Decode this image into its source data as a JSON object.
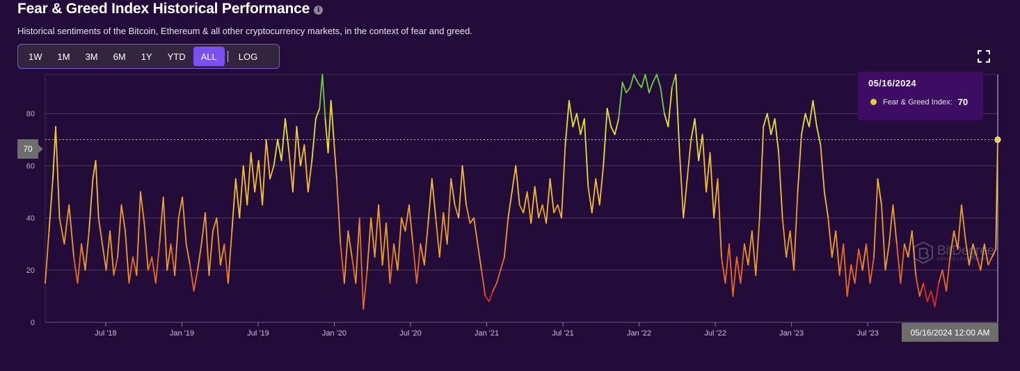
{
  "header": {
    "title": "Fear & Greed Index Historical Performance",
    "info_icon": "info-icon",
    "subtitle": "Historical sentiments of the Bitcoin, Ethereum & all other cryptocurrency markets, in the context of fear and greed."
  },
  "range_selector": {
    "buttons": [
      "1W",
      "1M",
      "3M",
      "6M",
      "1Y",
      "YTD",
      "ALL"
    ],
    "active": "ALL",
    "log_label": "LOG"
  },
  "fullscreen_icon": "fullscreen-icon",
  "tooltip": {
    "date": "05/16/2024",
    "series_label": "Fear & Greed Index:",
    "value": "70"
  },
  "crosshair": {
    "x_label": "05/16/2024 12:00 AM",
    "y_label": "70"
  },
  "watermark": {
    "name": "BitDegree",
    "tagline": "CRYPTO LEARNING HUB"
  },
  "colors": {
    "background": "#230c3a",
    "accent": "#7b4ff0",
    "gridline": "#4a3a60",
    "fear": "#e02a1f",
    "neutral": "#f0a020",
    "greed": "#e7e32e",
    "extreme_greed": "#6fd13a"
  },
  "chart_data": {
    "type": "line",
    "title": "Fear & Greed Index Historical Performance",
    "xlabel": "",
    "ylabel": "",
    "ylim": [
      0,
      95
    ],
    "yticks": [
      0,
      20,
      40,
      60,
      80
    ],
    "x_tick_labels": [
      "Jul '18",
      "Jan '19",
      "Jul '19",
      "Jan '20",
      "Jul '20",
      "Jan '21",
      "Jul '21",
      "Jan '22",
      "Jul '22",
      "Jan '23",
      "Jul '23"
    ],
    "x_tick_positions": [
      0.0635,
      0.1435,
      0.2235,
      0.3035,
      0.3835,
      0.4635,
      0.5435,
      0.6235,
      0.7035,
      0.7835,
      0.8635
    ],
    "grid": true,
    "legend": "none",
    "series": [
      {
        "name": "Fear & Greed Index",
        "points": [
          [
            0.0,
            15
          ],
          [
            0.004,
            35
          ],
          [
            0.008,
            55
          ],
          [
            0.011,
            75
          ],
          [
            0.015,
            40
          ],
          [
            0.02,
            30
          ],
          [
            0.025,
            45
          ],
          [
            0.03,
            25
          ],
          [
            0.034,
            15
          ],
          [
            0.038,
            30
          ],
          [
            0.042,
            20
          ],
          [
            0.046,
            35
          ],
          [
            0.05,
            55
          ],
          [
            0.053,
            62
          ],
          [
            0.056,
            40
          ],
          [
            0.06,
            30
          ],
          [
            0.064,
            20
          ],
          [
            0.068,
            35
          ],
          [
            0.072,
            18
          ],
          [
            0.076,
            25
          ],
          [
            0.08,
            45
          ],
          [
            0.084,
            35
          ],
          [
            0.088,
            15
          ],
          [
            0.092,
            25
          ],
          [
            0.096,
            18
          ],
          [
            0.1,
            50
          ],
          [
            0.104,
            38
          ],
          [
            0.108,
            20
          ],
          [
            0.112,
            25
          ],
          [
            0.116,
            15
          ],
          [
            0.12,
            30
          ],
          [
            0.124,
            48
          ],
          [
            0.128,
            20
          ],
          [
            0.132,
            30
          ],
          [
            0.136,
            18
          ],
          [
            0.14,
            40
          ],
          [
            0.144,
            48
          ],
          [
            0.148,
            30
          ],
          [
            0.152,
            22
          ],
          [
            0.156,
            12
          ],
          [
            0.16,
            20
          ],
          [
            0.164,
            30
          ],
          [
            0.168,
            42
          ],
          [
            0.172,
            18
          ],
          [
            0.176,
            35
          ],
          [
            0.18,
            40
          ],
          [
            0.184,
            22
          ],
          [
            0.188,
            30
          ],
          [
            0.192,
            15
          ],
          [
            0.196,
            35
          ],
          [
            0.2,
            55
          ],
          [
            0.204,
            40
          ],
          [
            0.208,
            60
          ],
          [
            0.212,
            45
          ],
          [
            0.216,
            65
          ],
          [
            0.22,
            50
          ],
          [
            0.224,
            62
          ],
          [
            0.228,
            45
          ],
          [
            0.232,
            70
          ],
          [
            0.236,
            55
          ],
          [
            0.24,
            60
          ],
          [
            0.244,
            70
          ],
          [
            0.248,
            62
          ],
          [
            0.252,
            78
          ],
          [
            0.256,
            65
          ],
          [
            0.26,
            50
          ],
          [
            0.264,
            75
          ],
          [
            0.268,
            60
          ],
          [
            0.272,
            68
          ],
          [
            0.276,
            50
          ],
          [
            0.28,
            62
          ],
          [
            0.284,
            78
          ],
          [
            0.288,
            82
          ],
          [
            0.291,
            95
          ],
          [
            0.294,
            78
          ],
          [
            0.297,
            65
          ],
          [
            0.3,
            85
          ],
          [
            0.303,
            70
          ],
          [
            0.306,
            55
          ],
          [
            0.31,
            30
          ],
          [
            0.314,
            15
          ],
          [
            0.318,
            35
          ],
          [
            0.322,
            25
          ],
          [
            0.326,
            15
          ],
          [
            0.33,
            40
          ],
          [
            0.334,
            5
          ],
          [
            0.338,
            20
          ],
          [
            0.342,
            40
          ],
          [
            0.346,
            25
          ],
          [
            0.35,
            45
          ],
          [
            0.354,
            22
          ],
          [
            0.358,
            38
          ],
          [
            0.362,
            15
          ],
          [
            0.366,
            30
          ],
          [
            0.37,
            20
          ],
          [
            0.374,
            40
          ],
          [
            0.378,
            35
          ],
          [
            0.382,
            45
          ],
          [
            0.386,
            30
          ],
          [
            0.39,
            15
          ],
          [
            0.394,
            30
          ],
          [
            0.398,
            22
          ],
          [
            0.402,
            38
          ],
          [
            0.406,
            55
          ],
          [
            0.41,
            40
          ],
          [
            0.414,
            25
          ],
          [
            0.418,
            42
          ],
          [
            0.422,
            30
          ],
          [
            0.426,
            55
          ],
          [
            0.43,
            45
          ],
          [
            0.434,
            40
          ],
          [
            0.438,
            60
          ],
          [
            0.442,
            45
          ],
          [
            0.446,
            38
          ],
          [
            0.45,
            40
          ],
          [
            0.454,
            30
          ],
          [
            0.458,
            20
          ],
          [
            0.462,
            10
          ],
          [
            0.466,
            8
          ],
          [
            0.47,
            12
          ],
          [
            0.474,
            15
          ],
          [
            0.478,
            20
          ],
          [
            0.482,
            25
          ],
          [
            0.486,
            40
          ],
          [
            0.49,
            50
          ],
          [
            0.494,
            60
          ],
          [
            0.498,
            45
          ],
          [
            0.502,
            42
          ],
          [
            0.506,
            50
          ],
          [
            0.51,
            38
          ],
          [
            0.514,
            52
          ],
          [
            0.518,
            40
          ],
          [
            0.522,
            45
          ],
          [
            0.526,
            38
          ],
          [
            0.53,
            55
          ],
          [
            0.534,
            42
          ],
          [
            0.538,
            45
          ],
          [
            0.542,
            40
          ],
          [
            0.546,
            68
          ],
          [
            0.55,
            85
          ],
          [
            0.554,
            75
          ],
          [
            0.558,
            80
          ],
          [
            0.562,
            72
          ],
          [
            0.566,
            78
          ],
          [
            0.57,
            52
          ],
          [
            0.574,
            42
          ],
          [
            0.578,
            55
          ],
          [
            0.582,
            45
          ],
          [
            0.586,
            60
          ],
          [
            0.59,
            82
          ],
          [
            0.594,
            75
          ],
          [
            0.598,
            72
          ],
          [
            0.602,
            78
          ],
          [
            0.606,
            92
          ],
          [
            0.61,
            88
          ],
          [
            0.614,
            90
          ],
          [
            0.618,
            95
          ],
          [
            0.622,
            92
          ],
          [
            0.626,
            90
          ],
          [
            0.63,
            95
          ],
          [
            0.634,
            88
          ],
          [
            0.638,
            92
          ],
          [
            0.642,
            95
          ],
          [
            0.646,
            90
          ],
          [
            0.65,
            80
          ],
          [
            0.654,
            75
          ],
          [
            0.658,
            90
          ],
          [
            0.662,
            95
          ],
          [
            0.666,
            65
          ],
          [
            0.67,
            40
          ],
          [
            0.674,
            55
          ],
          [
            0.678,
            70
          ],
          [
            0.682,
            78
          ],
          [
            0.686,
            62
          ],
          [
            0.69,
            72
          ],
          [
            0.694,
            50
          ],
          [
            0.698,
            65
          ],
          [
            0.702,
            40
          ],
          [
            0.706,
            55
          ],
          [
            0.71,
            25
          ],
          [
            0.714,
            15
          ],
          [
            0.718,
            30
          ],
          [
            0.722,
            10
          ],
          [
            0.726,
            25
          ],
          [
            0.73,
            15
          ],
          [
            0.734,
            30
          ],
          [
            0.738,
            22
          ],
          [
            0.742,
            35
          ],
          [
            0.746,
            18
          ],
          [
            0.75,
            40
          ],
          [
            0.754,
            75
          ],
          [
            0.758,
            80
          ],
          [
            0.762,
            72
          ],
          [
            0.766,
            78
          ],
          [
            0.77,
            65
          ],
          [
            0.774,
            40
          ],
          [
            0.778,
            25
          ],
          [
            0.782,
            35
          ],
          [
            0.786,
            20
          ],
          [
            0.79,
            50
          ],
          [
            0.794,
            72
          ],
          [
            0.798,
            80
          ],
          [
            0.802,
            75
          ],
          [
            0.806,
            85
          ],
          [
            0.81,
            75
          ],
          [
            0.814,
            68
          ],
          [
            0.818,
            50
          ],
          [
            0.822,
            40
          ],
          [
            0.826,
            25
          ],
          [
            0.83,
            35
          ],
          [
            0.834,
            18
          ],
          [
            0.838,
            30
          ],
          [
            0.842,
            10
          ],
          [
            0.846,
            22
          ],
          [
            0.85,
            15
          ],
          [
            0.854,
            28
          ],
          [
            0.858,
            20
          ],
          [
            0.862,
            30
          ],
          [
            0.866,
            15
          ],
          [
            0.87,
            25
          ],
          [
            0.874,
            55
          ],
          [
            0.878,
            45
          ],
          [
            0.882,
            20
          ],
          [
            0.886,
            30
          ],
          [
            0.89,
            45
          ],
          [
            0.894,
            30
          ],
          [
            0.898,
            15
          ],
          [
            0.902,
            30
          ],
          [
            0.906,
            25
          ],
          [
            0.91,
            35
          ],
          [
            0.914,
            18
          ],
          [
            0.918,
            10
          ],
          [
            0.922,
            15
          ],
          [
            0.926,
            8
          ],
          [
            0.93,
            12
          ],
          [
            0.934,
            6
          ],
          [
            0.938,
            15
          ],
          [
            0.942,
            20
          ],
          [
            0.946,
            12
          ],
          [
            0.95,
            25
          ],
          [
            0.954,
            35
          ],
          [
            0.958,
            28
          ],
          [
            0.962,
            45
          ],
          [
            0.966,
            32
          ],
          [
            0.97,
            22
          ],
          [
            0.974,
            30
          ],
          [
            0.978,
            25
          ],
          [
            0.982,
            20
          ],
          [
            0.986,
            30
          ],
          [
            0.99,
            22
          ],
          [
            0.994,
            25
          ],
          [
            0.998,
            28
          ],
          [
            1.0,
            70
          ]
        ]
      }
    ]
  }
}
